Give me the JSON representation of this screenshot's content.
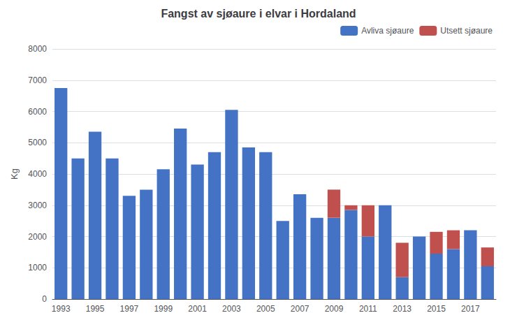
{
  "chart_data": {
    "type": "bar",
    "title": "Fangst av sjøaure i elvar i Hordaland",
    "ylabel": "Kg",
    "categories": [
      "1993",
      null,
      "1995",
      null,
      "1997",
      null,
      "1999",
      null,
      "2001",
      null,
      "2003",
      null,
      "2005",
      null,
      "2007",
      null,
      "2009",
      null,
      "2011",
      null,
      "2013",
      null,
      "2015",
      null,
      "2017",
      null
    ],
    "series": [
      {
        "name": "Avliva sjøaure",
        "color": "#4472C4",
        "values": [
          6750,
          4500,
          5350,
          4500,
          3300,
          3500,
          4150,
          5450,
          4300,
          4700,
          6050,
          4850,
          4700,
          2500,
          3350,
          2600,
          2600,
          2850,
          2000,
          3000,
          700,
          2000,
          1450,
          1600,
          2200,
          1050
        ]
      },
      {
        "name": "Utsett sjøaure",
        "color": "#C0504D",
        "values": [
          0,
          0,
          0,
          0,
          0,
          0,
          0,
          0,
          0,
          0,
          0,
          0,
          0,
          0,
          0,
          0,
          900,
          150,
          1000,
          0,
          1100,
          0,
          700,
          600,
          0,
          600
        ]
      }
    ],
    "stacked": true,
    "ylim": [
      0,
      8000
    ],
    "yticks": [
      0,
      1000,
      2000,
      3000,
      4000,
      5000,
      6000,
      7000,
      8000
    ],
    "grid": true,
    "legend": "upper right"
  }
}
